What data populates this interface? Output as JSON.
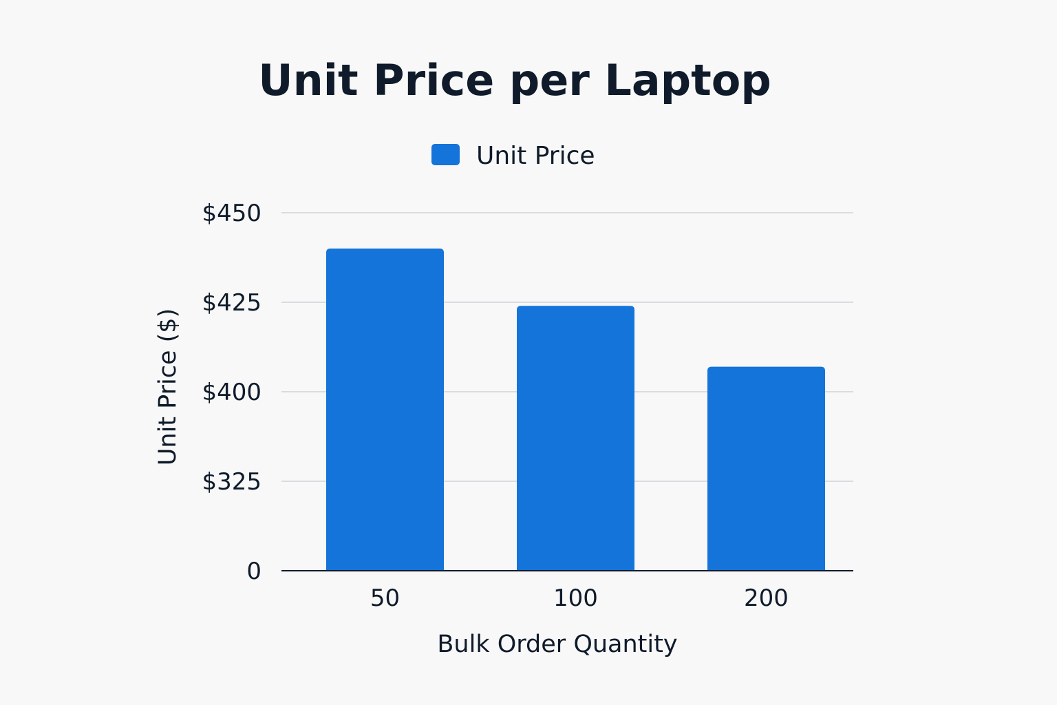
{
  "chart_data": {
    "type": "bar",
    "title": "Unit Price per Laptop",
    "xlabel": "Bulk Order Quantity",
    "ylabel": "Unit Price ($)",
    "categories": [
      "50",
      "100",
      "200"
    ],
    "series": [
      {
        "name": "Unit Price",
        "color": "#1474d9",
        "values": [
          440,
          424,
          407
        ]
      }
    ],
    "y_ticks": [
      "0",
      "$325",
      "$400",
      "$425",
      "$450"
    ],
    "axis_note": "y axis is broken: bottom tick 0, then $325, $400, $425, $450",
    "grid": true,
    "legend_position": "top-center"
  }
}
